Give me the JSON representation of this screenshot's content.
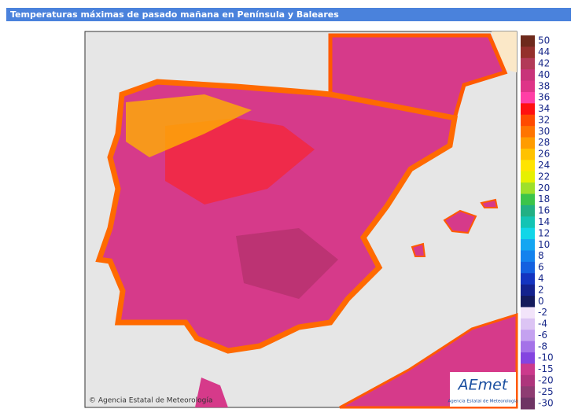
{
  "header": {
    "title": "Temperaturas máximas de pasado mañana en Península y Baleares"
  },
  "map": {
    "attribution": "© Agencia Estatal de Meteorología",
    "logo": {
      "name": "AEmet",
      "subtitle": "Agencia Estatal de Meteorología"
    }
  },
  "legend": {
    "items": [
      {
        "value": 50,
        "color": "#6e2a1c"
      },
      {
        "value": 44,
        "color": "#94302c"
      },
      {
        "value": 42,
        "color": "#b23a58"
      },
      {
        "value": 40,
        "color": "#c8347a"
      },
      {
        "value": 38,
        "color": "#de3588"
      },
      {
        "value": 36,
        "color": "#ff3fa6"
      },
      {
        "value": 34,
        "color": "#ff1010"
      },
      {
        "value": 32,
        "color": "#ff4a00"
      },
      {
        "value": 30,
        "color": "#ff7400"
      },
      {
        "value": 28,
        "color": "#ff9c00"
      },
      {
        "value": 26,
        "color": "#ffc200"
      },
      {
        "value": 24,
        "color": "#ffe400"
      },
      {
        "value": 22,
        "color": "#e6f000"
      },
      {
        "value": 20,
        "color": "#9ee02a"
      },
      {
        "value": 18,
        "color": "#3cc44a"
      },
      {
        "value": 16,
        "color": "#22b084"
      },
      {
        "value": 14,
        "color": "#14c4b4"
      },
      {
        "value": 12,
        "color": "#12d6e8"
      },
      {
        "value": 10,
        "color": "#14a6f2"
      },
      {
        "value": 8,
        "color": "#1482ee"
      },
      {
        "value": 6,
        "color": "#1460e0"
      },
      {
        "value": 4,
        "color": "#1434c0"
      },
      {
        "value": 2,
        "color": "#14228e"
      },
      {
        "value": 0,
        "color": "#141a5c"
      },
      {
        "value": -2,
        "color": "#f2e4fa"
      },
      {
        "value": -4,
        "color": "#dcc4f4"
      },
      {
        "value": -6,
        "color": "#c4a2f0"
      },
      {
        "value": -8,
        "color": "#a472e8"
      },
      {
        "value": -10,
        "color": "#8444e0"
      },
      {
        "value": -15,
        "color": "#cc3a8c"
      },
      {
        "value": -20,
        "color": "#ae357c"
      },
      {
        "value": -25,
        "color": "#8e3c72"
      },
      {
        "value": -30,
        "color": "#6e3464"
      }
    ]
  }
}
